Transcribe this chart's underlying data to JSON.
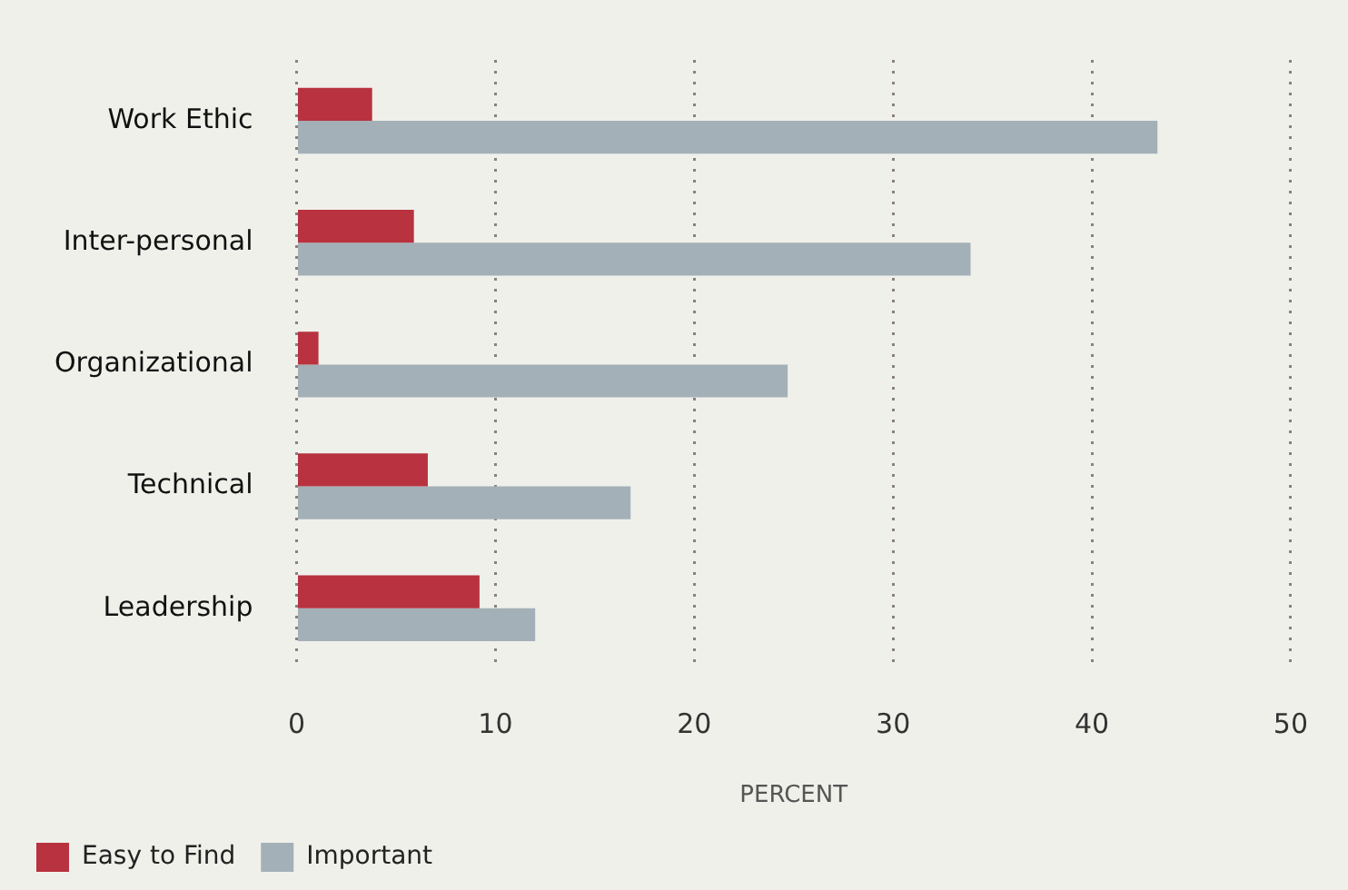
{
  "chart_data": {
    "type": "bar",
    "orientation": "horizontal",
    "categories": [
      "Work Ethic",
      "Inter-personal",
      "Organizational",
      "Technical",
      "Leadership"
    ],
    "series": [
      {
        "name": "Easy to Find",
        "color": "#b8323f",
        "values": [
          3.8,
          5.9,
          1.1,
          6.6,
          9.2
        ]
      },
      {
        "name": "Important",
        "color": "#a3b0b7",
        "values": [
          43.3,
          33.9,
          24.7,
          16.8,
          12.0
        ]
      }
    ],
    "xlabel": "PERCENT",
    "xlim": [
      0,
      50
    ],
    "xticks": [
      0,
      10,
      20,
      30,
      40,
      50
    ],
    "grid": "x",
    "legend": "bottom left"
  }
}
